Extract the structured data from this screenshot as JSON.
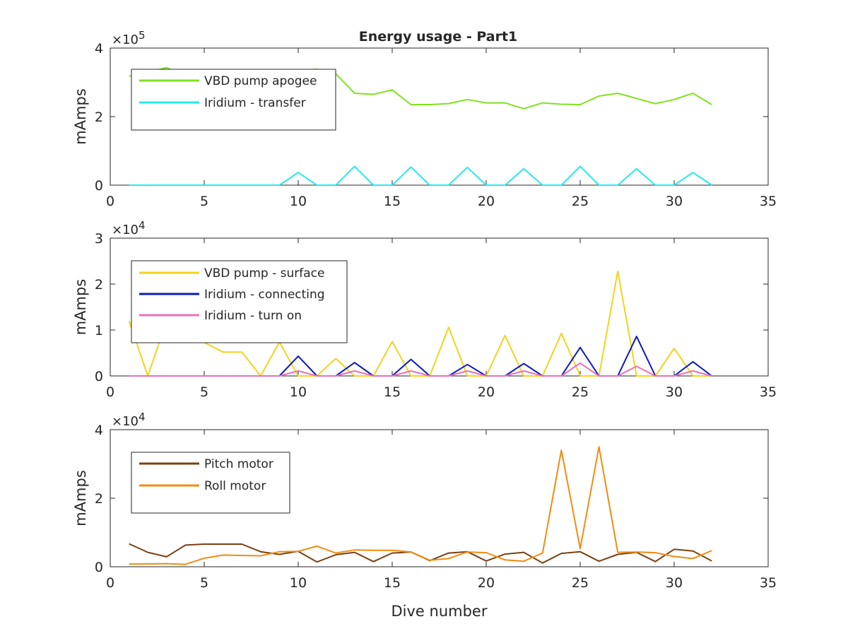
{
  "title": "Energy usage - Part1",
  "chart_data": [
    {
      "type": "line",
      "title": "Energy usage - Part1",
      "xlabel": "",
      "ylabel": "mAmps",
      "xlim": [
        0,
        35
      ],
      "ylim": [
        0,
        400000
      ],
      "x_ticks": [
        0,
        5,
        10,
        15,
        20,
        25,
        30,
        35
      ],
      "x_tick_labels": [
        "0",
        "5",
        "10",
        "15",
        "20",
        "25",
        "30",
        "35"
      ],
      "y_ticks": [
        0,
        200000,
        400000
      ],
      "y_tick_labels": [
        "0",
        "2",
        "4"
      ],
      "y_exponent_label": "×10",
      "y_exponent_power": "5",
      "grid": false,
      "legend_position": "top-left",
      "x": [
        1,
        2,
        3,
        4,
        5,
        6,
        7,
        8,
        9,
        10,
        11,
        12,
        13,
        14,
        15,
        16,
        17,
        18,
        19,
        20,
        21,
        22,
        23,
        24,
        25,
        26,
        27,
        28,
        29,
        30,
        31,
        32
      ],
      "series": [
        {
          "name": "VBD pump apogee",
          "color": "#7fe31f",
          "values": [
            318000,
            329000,
            343000,
            316000,
            312000,
            312000,
            312000,
            320000,
            324000,
            336000,
            338000,
            325000,
            268000,
            265000,
            278000,
            235000,
            235000,
            238000,
            250000,
            240000,
            240000,
            223000,
            240000,
            236000,
            235000,
            260000,
            268000,
            253000,
            238000,
            250000,
            268000,
            235000
          ]
        },
        {
          "name": "Iridium - transfer",
          "color": "#26e8f2",
          "values": [
            0,
            0,
            0,
            0,
            0,
            0,
            0,
            0,
            0,
            37000,
            0,
            0,
            55000,
            0,
            0,
            53000,
            0,
            0,
            52000,
            0,
            0,
            48000,
            0,
            0,
            55000,
            0,
            0,
            48000,
            0,
            0,
            37000,
            0
          ]
        }
      ]
    },
    {
      "type": "line",
      "xlabel": "",
      "ylabel": "mAmps",
      "xlim": [
        0,
        35
      ],
      "ylim": [
        0,
        30000
      ],
      "x_ticks": [
        0,
        5,
        10,
        15,
        20,
        25,
        30,
        35
      ],
      "x_tick_labels": [
        "0",
        "5",
        "10",
        "15",
        "20",
        "25",
        "30",
        "35"
      ],
      "y_ticks": [
        0,
        10000,
        20000,
        30000
      ],
      "y_tick_labels": [
        "0",
        "1",
        "2",
        "3"
      ],
      "y_exponent_label": "×10",
      "y_exponent_power": "4",
      "grid": false,
      "legend_position": "top-left",
      "x": [
        1,
        2,
        3,
        4,
        5,
        6,
        7,
        8,
        9,
        10,
        11,
        12,
        13,
        14,
        15,
        16,
        17,
        18,
        19,
        20,
        21,
        22,
        23,
        24,
        25,
        26,
        27,
        28,
        29,
        30,
        31,
        32
      ],
      "series": [
        {
          "name": "VBD pump - surface",
          "color": "#f5d21c",
          "values": [
            12000,
            0,
            12000,
            13000,
            7300,
            5200,
            5200,
            0,
            7400,
            0,
            0,
            3800,
            0,
            0,
            7500,
            0,
            0,
            10600,
            0,
            0,
            8800,
            0,
            0,
            9300,
            0,
            0,
            22800,
            0,
            0,
            6000,
            0,
            0
          ]
        },
        {
          "name": "Iridium - connecting",
          "color": "#0b1bb8",
          "values": [
            0,
            0,
            0,
            0,
            0,
            0,
            0,
            0,
            0,
            4300,
            0,
            0,
            2900,
            0,
            0,
            3600,
            0,
            0,
            2500,
            0,
            0,
            2700,
            0,
            0,
            6200,
            0,
            0,
            8600,
            0,
            0,
            3100,
            0
          ]
        },
        {
          "name": "Iridium - turn on",
          "color": "#eb70b8",
          "values": [
            0,
            0,
            0,
            0,
            0,
            0,
            0,
            0,
            0,
            1100,
            0,
            0,
            1100,
            0,
            0,
            1100,
            0,
            0,
            1100,
            0,
            0,
            1100,
            0,
            0,
            2800,
            0,
            0,
            2100,
            0,
            0,
            1100,
            0
          ]
        }
      ]
    },
    {
      "type": "line",
      "xlabel": "Dive number",
      "ylabel": "mAmps",
      "xlim": [
        0,
        35
      ],
      "ylim": [
        0,
        40000
      ],
      "x_ticks": [
        0,
        5,
        10,
        15,
        20,
        25,
        30,
        35
      ],
      "x_tick_labels": [
        "0",
        "5",
        "10",
        "15",
        "20",
        "25",
        "30",
        "35"
      ],
      "y_ticks": [
        0,
        20000,
        40000
      ],
      "y_tick_labels": [
        "0",
        "2",
        "4"
      ],
      "y_exponent_label": "×10",
      "y_exponent_power": "4",
      "grid": false,
      "legend_position": "top-left",
      "x": [
        1,
        2,
        3,
        4,
        5,
        6,
        7,
        8,
        9,
        10,
        11,
        12,
        13,
        14,
        15,
        16,
        17,
        18,
        19,
        20,
        21,
        22,
        23,
        24,
        25,
        26,
        27,
        28,
        29,
        30,
        31,
        32
      ],
      "series": [
        {
          "name": "Pitch motor",
          "color": "#7a4112",
          "values": [
            6700,
            4200,
            2900,
            6300,
            6600,
            6600,
            6600,
            4400,
            3600,
            4500,
            1400,
            3500,
            4200,
            1500,
            4000,
            4300,
            1800,
            4000,
            4400,
            1700,
            3700,
            4200,
            1100,
            3900,
            4400,
            1600,
            3600,
            4200,
            1500,
            5100,
            4600,
            1700
          ]
        },
        {
          "name": "Roll motor",
          "color": "#f08c10",
          "values": [
            800,
            800,
            900,
            700,
            2500,
            3400,
            3300,
            3200,
            4400,
            4500,
            6000,
            4000,
            4900,
            4800,
            4800,
            4300,
            1900,
            2400,
            4300,
            4100,
            2000,
            1600,
            4000,
            34000,
            5300,
            35000,
            4200,
            4300,
            4100,
            3000,
            2400,
            4700
          ]
        }
      ]
    }
  ]
}
